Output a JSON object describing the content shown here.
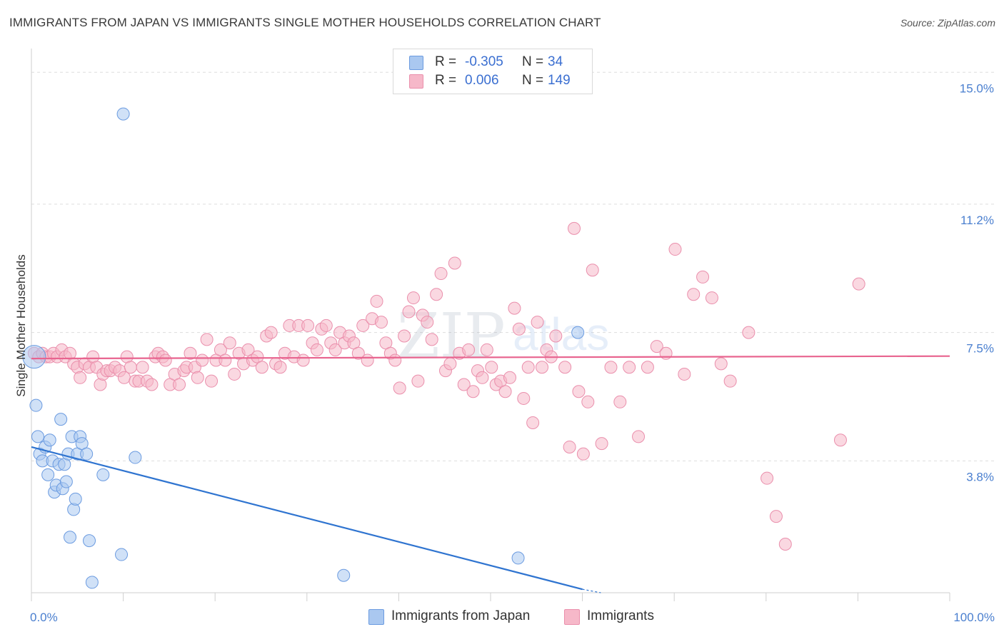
{
  "header": {
    "title": "IMMIGRANTS FROM JAPAN VS IMMIGRANTS SINGLE MOTHER HOUSEHOLDS CORRELATION CHART",
    "source": "Source: ZipAtlas.com"
  },
  "legend": {
    "rows": [
      {
        "r_label": "R =",
        "r_value": "-0.305",
        "n_label": "N =",
        "n_value": "34"
      },
      {
        "r_label": "R =",
        "r_value": "0.006",
        "n_label": "N =",
        "n_value": "149"
      }
    ]
  },
  "bottom_legend": {
    "series1": "Immigrants from Japan",
    "series2": "Immigrants"
  },
  "watermark": {
    "zip": "ZIP",
    "atlas": "atlas"
  },
  "colors": {
    "blue_fill": "#aac8f0",
    "blue_stroke": "#6b9be0",
    "blue_line": "#2f74d0",
    "pink_fill": "#f6b8c9",
    "pink_stroke": "#ea8fac",
    "pink_line": "#e8648f",
    "tick_text": "#4a7fcf",
    "grid": "#dddddd"
  },
  "chart_data": {
    "type": "scatter",
    "title": "IMMIGRANTS FROM JAPAN VS IMMIGRANTS SINGLE MOTHER HOUSEHOLDS CORRELATION CHART",
    "xlabel": "",
    "ylabel": "Single Mother Households",
    "xlim": [
      0,
      100
    ],
    "ylim": [
      0,
      15.5
    ],
    "x_tick_labels": [
      "0.0%",
      "100.0%"
    ],
    "y_ticks": [
      3.8,
      7.5,
      11.2,
      15.0
    ],
    "y_tick_labels": [
      "3.8%",
      "7.5%",
      "11.2%",
      "15.0%"
    ],
    "series": [
      {
        "name": "Immigrants from Japan",
        "r": -0.305,
        "n": 34,
        "trend": {
          "x": [
            0,
            60
          ],
          "y": [
            4.2,
            0.1
          ]
        },
        "trend_dashed": {
          "x": [
            60,
            62
          ],
          "y": [
            0.1,
            0.0
          ]
        },
        "points": [
          [
            0.3,
            6.8
          ],
          [
            0.5,
            5.4
          ],
          [
            0.7,
            4.5
          ],
          [
            0.9,
            4.0
          ],
          [
            1.2,
            3.8
          ],
          [
            1.5,
            4.2
          ],
          [
            1.8,
            3.4
          ],
          [
            2.0,
            4.4
          ],
          [
            2.3,
            3.8
          ],
          [
            2.5,
            2.9
          ],
          [
            2.7,
            3.1
          ],
          [
            3.0,
            3.7
          ],
          [
            3.2,
            5.0
          ],
          [
            3.4,
            3.0
          ],
          [
            3.6,
            3.7
          ],
          [
            3.8,
            3.2
          ],
          [
            4.0,
            4.0
          ],
          [
            4.2,
            1.6
          ],
          [
            4.4,
            4.5
          ],
          [
            4.6,
            2.4
          ],
          [
            4.8,
            2.7
          ],
          [
            5.0,
            4.0
          ],
          [
            5.3,
            4.5
          ],
          [
            5.5,
            4.3
          ],
          [
            6.0,
            4.0
          ],
          [
            6.3,
            1.5
          ],
          [
            6.6,
            0.3
          ],
          [
            7.8,
            3.4
          ],
          [
            9.8,
            1.1
          ],
          [
            10.0,
            13.8
          ],
          [
            11.3,
            3.9
          ],
          [
            34.0,
            0.5
          ],
          [
            53.0,
            1.0
          ],
          [
            59.5,
            7.5
          ]
        ]
      },
      {
        "name": "Immigrants",
        "r": 0.006,
        "n": 149,
        "trend": {
          "x": [
            0,
            100
          ],
          "y": [
            6.75,
            6.82
          ]
        },
        "points": [
          [
            0.3,
            6.9
          ],
          [
            0.8,
            6.8
          ],
          [
            1.2,
            6.9
          ],
          [
            1.6,
            6.8
          ],
          [
            2.0,
            6.8
          ],
          [
            2.4,
            6.9
          ],
          [
            2.8,
            6.8
          ],
          [
            3.3,
            7.0
          ],
          [
            3.7,
            6.8
          ],
          [
            4.2,
            6.9
          ],
          [
            4.6,
            6.6
          ],
          [
            5.0,
            6.5
          ],
          [
            5.3,
            6.2
          ],
          [
            5.8,
            6.6
          ],
          [
            6.3,
            6.5
          ],
          [
            6.7,
            6.8
          ],
          [
            7.1,
            6.5
          ],
          [
            7.5,
            6.0
          ],
          [
            7.8,
            6.3
          ],
          [
            8.2,
            6.4
          ],
          [
            8.6,
            6.4
          ],
          [
            9.1,
            6.5
          ],
          [
            9.6,
            6.4
          ],
          [
            10.1,
            6.2
          ],
          [
            10.4,
            6.8
          ],
          [
            10.8,
            6.5
          ],
          [
            11.3,
            6.1
          ],
          [
            11.7,
            6.1
          ],
          [
            12.1,
            6.5
          ],
          [
            12.6,
            6.1
          ],
          [
            13.1,
            6.0
          ],
          [
            13.5,
            6.8
          ],
          [
            13.8,
            6.9
          ],
          [
            14.3,
            6.8
          ],
          [
            14.6,
            6.7
          ],
          [
            15.1,
            6.0
          ],
          [
            15.6,
            6.3
          ],
          [
            16.1,
            6.0
          ],
          [
            16.6,
            6.4
          ],
          [
            16.9,
            6.5
          ],
          [
            17.3,
            6.9
          ],
          [
            17.8,
            6.5
          ],
          [
            18.1,
            6.2
          ],
          [
            18.6,
            6.7
          ],
          [
            19.1,
            7.3
          ],
          [
            19.6,
            6.1
          ],
          [
            20.1,
            6.7
          ],
          [
            20.6,
            7.0
          ],
          [
            21.1,
            6.7
          ],
          [
            21.6,
            7.2
          ],
          [
            22.1,
            6.3
          ],
          [
            22.6,
            6.9
          ],
          [
            23.1,
            6.6
          ],
          [
            23.6,
            7.0
          ],
          [
            24.1,
            6.7
          ],
          [
            24.6,
            6.8
          ],
          [
            25.1,
            6.5
          ],
          [
            25.6,
            7.4
          ],
          [
            26.1,
            7.5
          ],
          [
            26.6,
            6.6
          ],
          [
            27.1,
            6.5
          ],
          [
            27.6,
            6.9
          ],
          [
            28.1,
            7.7
          ],
          [
            28.6,
            6.8
          ],
          [
            29.1,
            7.7
          ],
          [
            29.6,
            6.7
          ],
          [
            30.1,
            7.7
          ],
          [
            30.6,
            7.2
          ],
          [
            31.1,
            7.0
          ],
          [
            31.6,
            7.6
          ],
          [
            32.1,
            7.7
          ],
          [
            32.6,
            7.2
          ],
          [
            33.1,
            7.0
          ],
          [
            33.6,
            7.5
          ],
          [
            34.1,
            7.2
          ],
          [
            34.6,
            7.4
          ],
          [
            35.1,
            7.2
          ],
          [
            35.6,
            6.9
          ],
          [
            36.1,
            7.7
          ],
          [
            36.6,
            6.7
          ],
          [
            37.1,
            7.9
          ],
          [
            37.6,
            8.4
          ],
          [
            38.1,
            7.8
          ],
          [
            38.6,
            7.2
          ],
          [
            39.1,
            6.9
          ],
          [
            39.6,
            6.7
          ],
          [
            40.1,
            5.9
          ],
          [
            40.6,
            7.4
          ],
          [
            41.1,
            8.1
          ],
          [
            41.6,
            8.5
          ],
          [
            42.1,
            6.1
          ],
          [
            42.6,
            8.0
          ],
          [
            43.1,
            7.8
          ],
          [
            43.6,
            7.3
          ],
          [
            44.1,
            8.6
          ],
          [
            44.6,
            9.2
          ],
          [
            45.1,
            6.4
          ],
          [
            45.6,
            6.6
          ],
          [
            46.1,
            9.5
          ],
          [
            46.6,
            6.9
          ],
          [
            47.1,
            6.0
          ],
          [
            47.6,
            7.0
          ],
          [
            48.1,
            5.8
          ],
          [
            48.6,
            6.4
          ],
          [
            49.1,
            6.2
          ],
          [
            49.6,
            7.0
          ],
          [
            50.1,
            6.5
          ],
          [
            50.6,
            6.0
          ],
          [
            51.1,
            6.1
          ],
          [
            51.6,
            5.8
          ],
          [
            52.1,
            6.2
          ],
          [
            52.6,
            8.2
          ],
          [
            53.1,
            7.6
          ],
          [
            53.6,
            5.6
          ],
          [
            54.1,
            6.5
          ],
          [
            54.6,
            4.9
          ],
          [
            55.1,
            7.8
          ],
          [
            55.6,
            6.5
          ],
          [
            56.1,
            7.0
          ],
          [
            56.6,
            6.8
          ],
          [
            57.1,
            7.4
          ],
          [
            58.1,
            6.5
          ],
          [
            58.6,
            4.2
          ],
          [
            59.1,
            10.5
          ],
          [
            59.6,
            5.8
          ],
          [
            60.1,
            4.0
          ],
          [
            60.6,
            5.5
          ],
          [
            61.1,
            9.3
          ],
          [
            62.1,
            4.3
          ],
          [
            63.1,
            6.5
          ],
          [
            64.1,
            5.5
          ],
          [
            65.1,
            6.5
          ],
          [
            66.1,
            4.5
          ],
          [
            67.1,
            6.5
          ],
          [
            68.1,
            7.1
          ],
          [
            69.1,
            6.9
          ],
          [
            70.1,
            9.9
          ],
          [
            71.1,
            6.3
          ],
          [
            72.1,
            8.6
          ],
          [
            73.1,
            9.1
          ],
          [
            74.1,
            8.5
          ],
          [
            75.1,
            6.6
          ],
          [
            76.1,
            6.1
          ],
          [
            78.1,
            7.5
          ],
          [
            80.1,
            3.3
          ],
          [
            81.1,
            2.2
          ],
          [
            82.1,
            1.4
          ],
          [
            88.1,
            4.4
          ],
          [
            90.1,
            8.9
          ]
        ]
      }
    ]
  }
}
